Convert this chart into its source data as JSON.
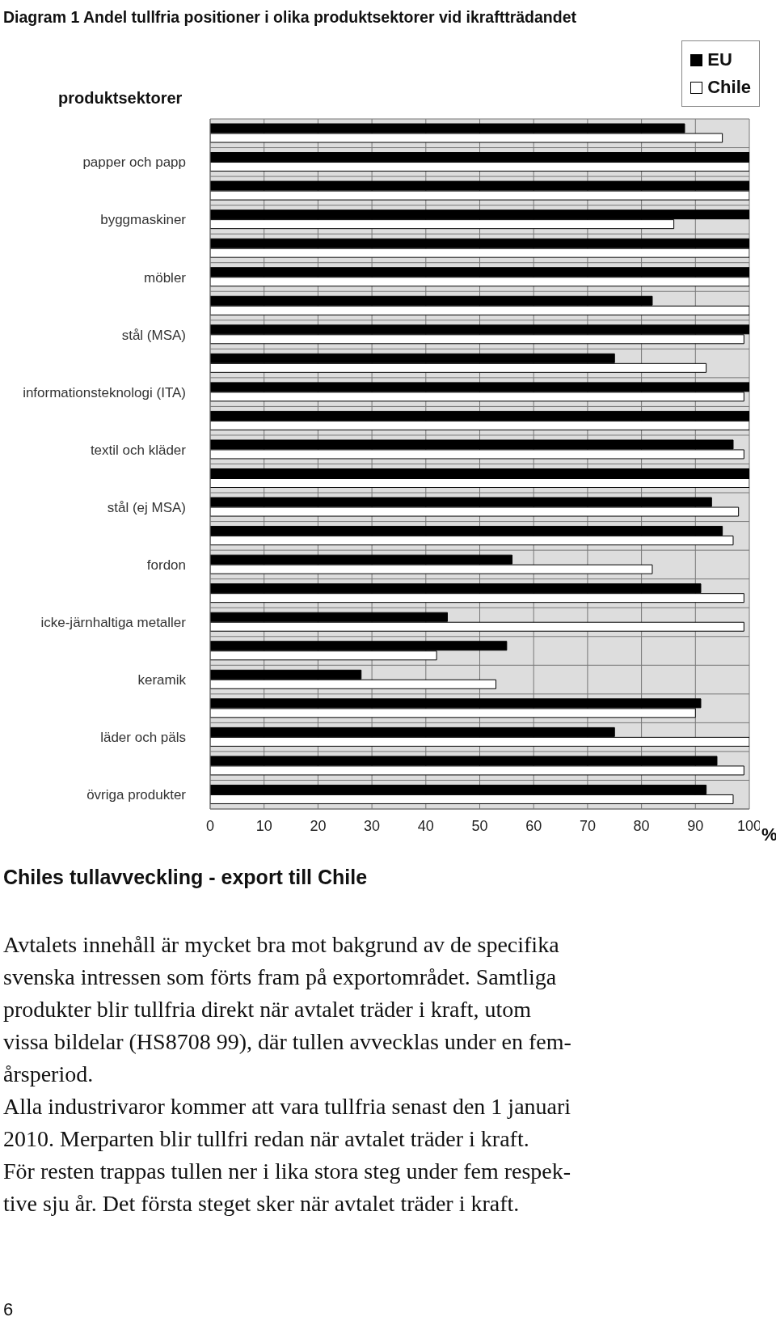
{
  "chart_data": {
    "type": "bar",
    "orientation": "horizontal",
    "title": "Diagram 1 Andel tullfria positioner i olika produktsektorer vid ikraftträdandet",
    "ylabel": "produktsektorer",
    "xlabel": "%",
    "categories": [
      null,
      "papper och papp",
      null,
      "byggmaskiner",
      null,
      "möbler",
      null,
      "stål (MSA)",
      null,
      "informationsteknologi (ITA)",
      null,
      "textil och kläder",
      null,
      "stål (ej MSA)",
      null,
      "fordon",
      null,
      "icke-järnhaltiga metaller",
      null,
      "keramik",
      null,
      "läder och päls",
      null,
      "övriga produkter"
    ],
    "series": [
      {
        "name": "EU",
        "color": "#000000",
        "values": [
          88,
          100,
          100,
          100,
          100,
          100,
          82,
          100,
          75,
          100,
          100,
          97,
          100,
          93,
          95,
          56,
          91,
          44,
          55,
          28,
          91,
          75,
          94,
          92
        ]
      },
      {
        "name": "Chile",
        "color": "#ffffff",
        "values": [
          95,
          100,
          100,
          86,
          100,
          100,
          100,
          99,
          92,
          99,
          100,
          99,
          100,
          98,
          97,
          82,
          99,
          99,
          42,
          53,
          90,
          100,
          99,
          97
        ]
      }
    ],
    "xlim": [
      0,
      100
    ],
    "xticks": [
      0,
      10,
      20,
      30,
      40,
      50,
      60,
      70,
      80,
      90,
      100
    ],
    "grid": true,
    "legend": "top right",
    "annotations": [
      "Chiles tullavveckling - export till Chile",
      "Avtalets innehåll är mycket bra mot bakgrund av de specifika\nsvenska intressen som förts fram på exportområdet. Samtliga\nprodukter blir tullfria direkt när avtalet träder i kraft, utom\nvissa bildelar (HS8708 99), där tullen avvecklas under en fem-\nårsperiod.",
      "Alla industrivaror kommer att vara tullfria senast den 1 januari\n2010. Merparten blir tullfri redan när avtalet träder i kraft.\nFör resten trappas tullen ner i lika stora steg under fem respek-\ntive sju år. Det första steget sker när avtalet träder i kraft.",
      "6"
    ]
  }
}
